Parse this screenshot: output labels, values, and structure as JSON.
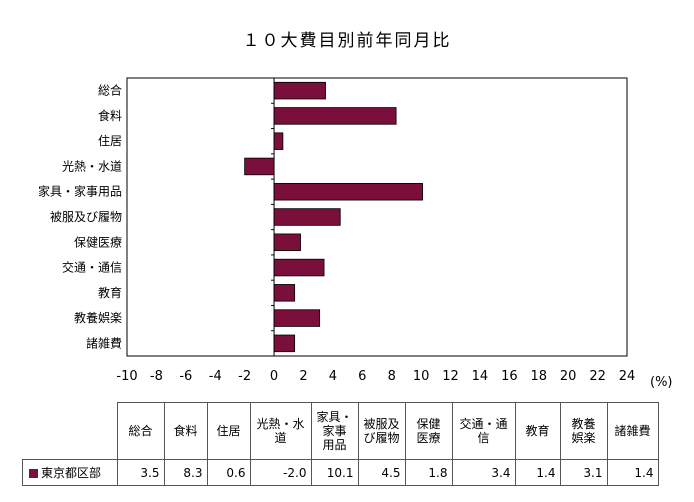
{
  "chart_data": {
    "type": "bar",
    "orientation": "horizontal",
    "title": "１０大費目別前年同月比",
    "unit_label": "(%)",
    "categories": [
      "総合",
      "食料",
      "住居",
      "光熱・水道",
      "家具・家事用品",
      "被服及び履物",
      "保健医療",
      "交通・通信",
      "教育",
      "教養娯楽",
      "諸雑費"
    ],
    "series": [
      {
        "name": "東京都区部",
        "values": [
          3.5,
          8.3,
          0.6,
          -2.0,
          10.1,
          4.5,
          1.8,
          3.4,
          1.4,
          3.1,
          1.4
        ],
        "color": "#7a0f3c"
      }
    ],
    "xlim": [
      -10,
      24
    ],
    "xticks": [
      -10,
      -8,
      -6,
      -4,
      -2,
      0,
      2,
      4,
      6,
      8,
      10,
      12,
      14,
      16,
      18,
      20,
      22,
      24
    ],
    "grid": false,
    "legend": "table-row"
  },
  "table": {
    "headers": [
      "総合",
      "食料",
      "住居",
      "光熱・水\n道",
      "家具・\n家事\n用品",
      "被服及\nび履物",
      "保健\n医療",
      "交通・通\n信",
      "教育",
      "教養\n娯楽",
      "諸雑費"
    ],
    "row_label": "東京都区部",
    "values": [
      "3.5",
      "8.3",
      "0.6",
      "-2.0",
      "10.1",
      "4.5",
      "1.8",
      "3.4",
      "1.4",
      "3.1",
      "1.4"
    ]
  }
}
